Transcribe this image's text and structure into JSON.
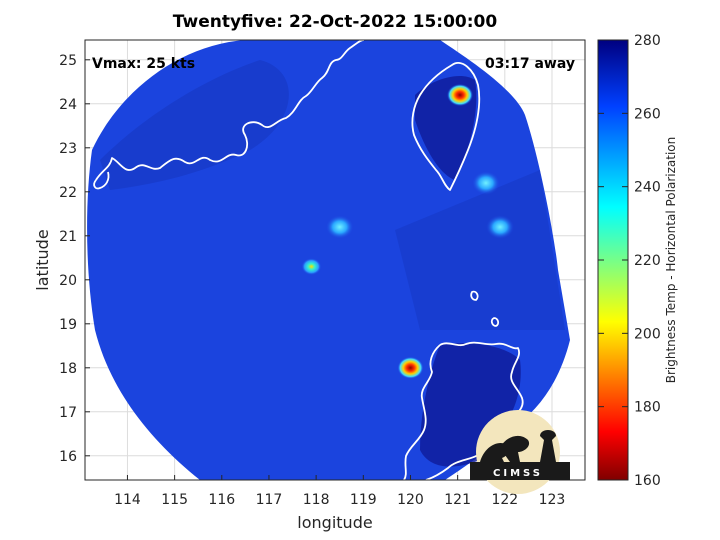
{
  "title": "Twentyfive: 22-Oct-2022 15:00:00",
  "annotations": {
    "vmax": "Vmax: 25 kts",
    "time_away": "03:17 away"
  },
  "axes": {
    "xlabel": "longitude",
    "ylabel": "latitude",
    "xlim": [
      113.1,
      123.7
    ],
    "ylim": [
      15.45,
      25.45
    ],
    "xticks": [
      "114",
      "115",
      "116",
      "117",
      "118",
      "119",
      "120",
      "121",
      "122",
      "123"
    ],
    "yticks": [
      "16",
      "17",
      "18",
      "19",
      "20",
      "21",
      "22",
      "23",
      "24",
      "25"
    ],
    "grid": true
  },
  "colorbar": {
    "label": "Brightness Temp - Horizontal Polarization",
    "range": [
      160,
      280
    ],
    "ticks": [
      "160",
      "180",
      "200",
      "220",
      "240",
      "260",
      "280"
    ],
    "colormap": "jet"
  },
  "logo": {
    "text": "CIMSS"
  },
  "colors": {
    "background_field": "#1a3fe0",
    "warm_field": "#101c9c",
    "coastline": "#ffffff"
  },
  "convective_cells": [
    {
      "lon": 120.0,
      "lat": 18.0,
      "temp": 180
    },
    {
      "lon": 121.05,
      "lat": 24.2,
      "temp": 185
    },
    {
      "lon": 117.9,
      "lat": 20.3,
      "temp": 225
    },
    {
      "lon": 118.5,
      "lat": 21.2,
      "temp": 240
    },
    {
      "lon": 121.6,
      "lat": 22.2,
      "temp": 240
    },
    {
      "lon": 121.9,
      "lat": 21.2,
      "temp": 245
    }
  ]
}
